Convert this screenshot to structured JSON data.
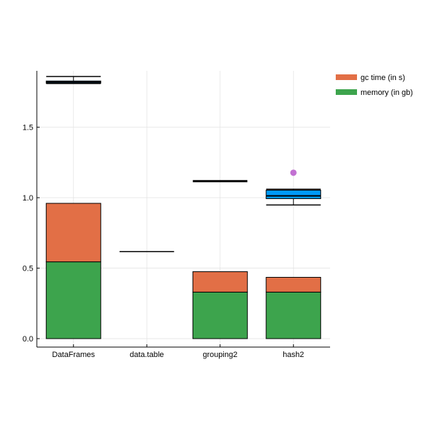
{
  "chart_data": {
    "type": "bar",
    "stacked": true,
    "categories": [
      "DataFrames",
      "data.table",
      "grouping2",
      "hash2"
    ],
    "series": [
      {
        "name": "memory (in gb)",
        "color": "#3da44d",
        "values": [
          0.545,
          0.0,
          0.33,
          0.33
        ]
      },
      {
        "name": "gc time (in s)",
        "color": "#e26f46",
        "values": [
          0.415,
          0.0,
          0.145,
          0.105
        ]
      }
    ],
    "overlay": {
      "type": "boxplot",
      "color": "#009af9",
      "stroke": "#000000",
      "boxes": [
        {
          "category": "DataFrames",
          "whisker_low": 1.81,
          "q1": 1.812,
          "median": 1.82,
          "q3": 1.828,
          "whisker_high": 1.86,
          "outliers": []
        },
        {
          "category": "data.table",
          "whisker_low": 0.617,
          "q1": 0.617,
          "median": 0.617,
          "q3": 0.617,
          "whisker_high": 0.617,
          "outliers": []
        },
        {
          "category": "grouping2",
          "whisker_low": 1.117,
          "q1": 1.117,
          "median": 1.117,
          "q3": 1.117,
          "whisker_high": 1.117,
          "outliers": []
        },
        {
          "category": "hash2",
          "whisker_low": 0.948,
          "q1": 0.993,
          "median": 1.013,
          "q3": 1.053,
          "whisker_high": 1.06,
          "outliers": [
            1.177
          ]
        }
      ],
      "outlier_color": "#c271d2"
    },
    "ylim": [
      -0.06,
      1.9
    ],
    "yticks": [
      0.0,
      0.5,
      1.0,
      1.5
    ],
    "ytick_labels": [
      "0.0",
      "0.5",
      "1.0",
      "1.5"
    ],
    "title": "",
    "xlabel": "",
    "ylabel": "",
    "grid": true,
    "legend_position": "top-right",
    "legend": [
      {
        "label": "gc time (in s)",
        "color": "#e26f46"
      },
      {
        "label": "memory (in gb)",
        "color": "#3da44d"
      }
    ]
  }
}
